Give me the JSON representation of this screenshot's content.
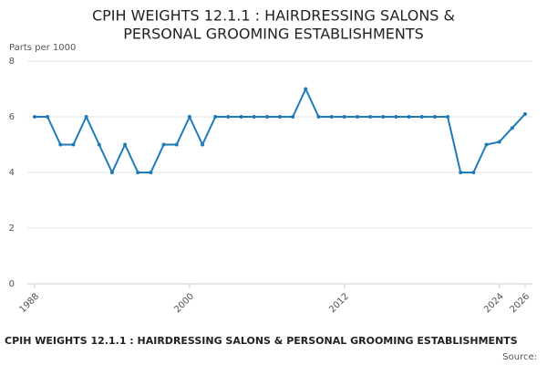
{
  "chart_data": {
    "type": "line",
    "title_lines": [
      "CPIH WEIGHTS 12.1.1 : HAIRDRESSING SALONS &",
      "PERSONAL GROOMING ESTABLISHMENTS"
    ],
    "y_label": "Parts per 1000",
    "footer_title": "CPIH WEIGHTS 12.1.1 : HAIRDRESSING SALONS & PERSONAL GROOMING ESTABLISHMENTS",
    "source": "Source:",
    "x": [
      1988,
      1989,
      1990,
      1991,
      1992,
      1993,
      1994,
      1995,
      1996,
      1997,
      1998,
      1999,
      2000,
      2001,
      2002,
      2003,
      2004,
      2005,
      2006,
      2007,
      2008,
      2009,
      2010,
      2011,
      2012,
      2013,
      2014,
      2015,
      2016,
      2017,
      2018,
      2019,
      2020,
      2021,
      2022,
      2023,
      2024,
      2025,
      2026
    ],
    "series": [
      {
        "color": "#1f7ab8",
        "values": [
          6,
          6,
          5,
          5,
          6,
          5,
          4,
          5,
          4,
          4,
          5,
          5,
          6,
          5,
          6,
          6,
          6,
          6,
          6,
          6,
          6,
          7,
          6,
          6,
          6,
          6,
          6,
          6,
          6,
          6,
          6,
          6,
          6,
          4,
          4,
          5,
          5.1,
          5.6,
          6.1
        ]
      }
    ],
    "xlim": [
      1988,
      2026
    ],
    "xticks": [
      1988,
      2000,
      2012,
      2024,
      2026
    ],
    "ylim": [
      0,
      8
    ],
    "yticks": [
      0,
      2,
      4,
      6,
      8
    ],
    "grid": true
  }
}
